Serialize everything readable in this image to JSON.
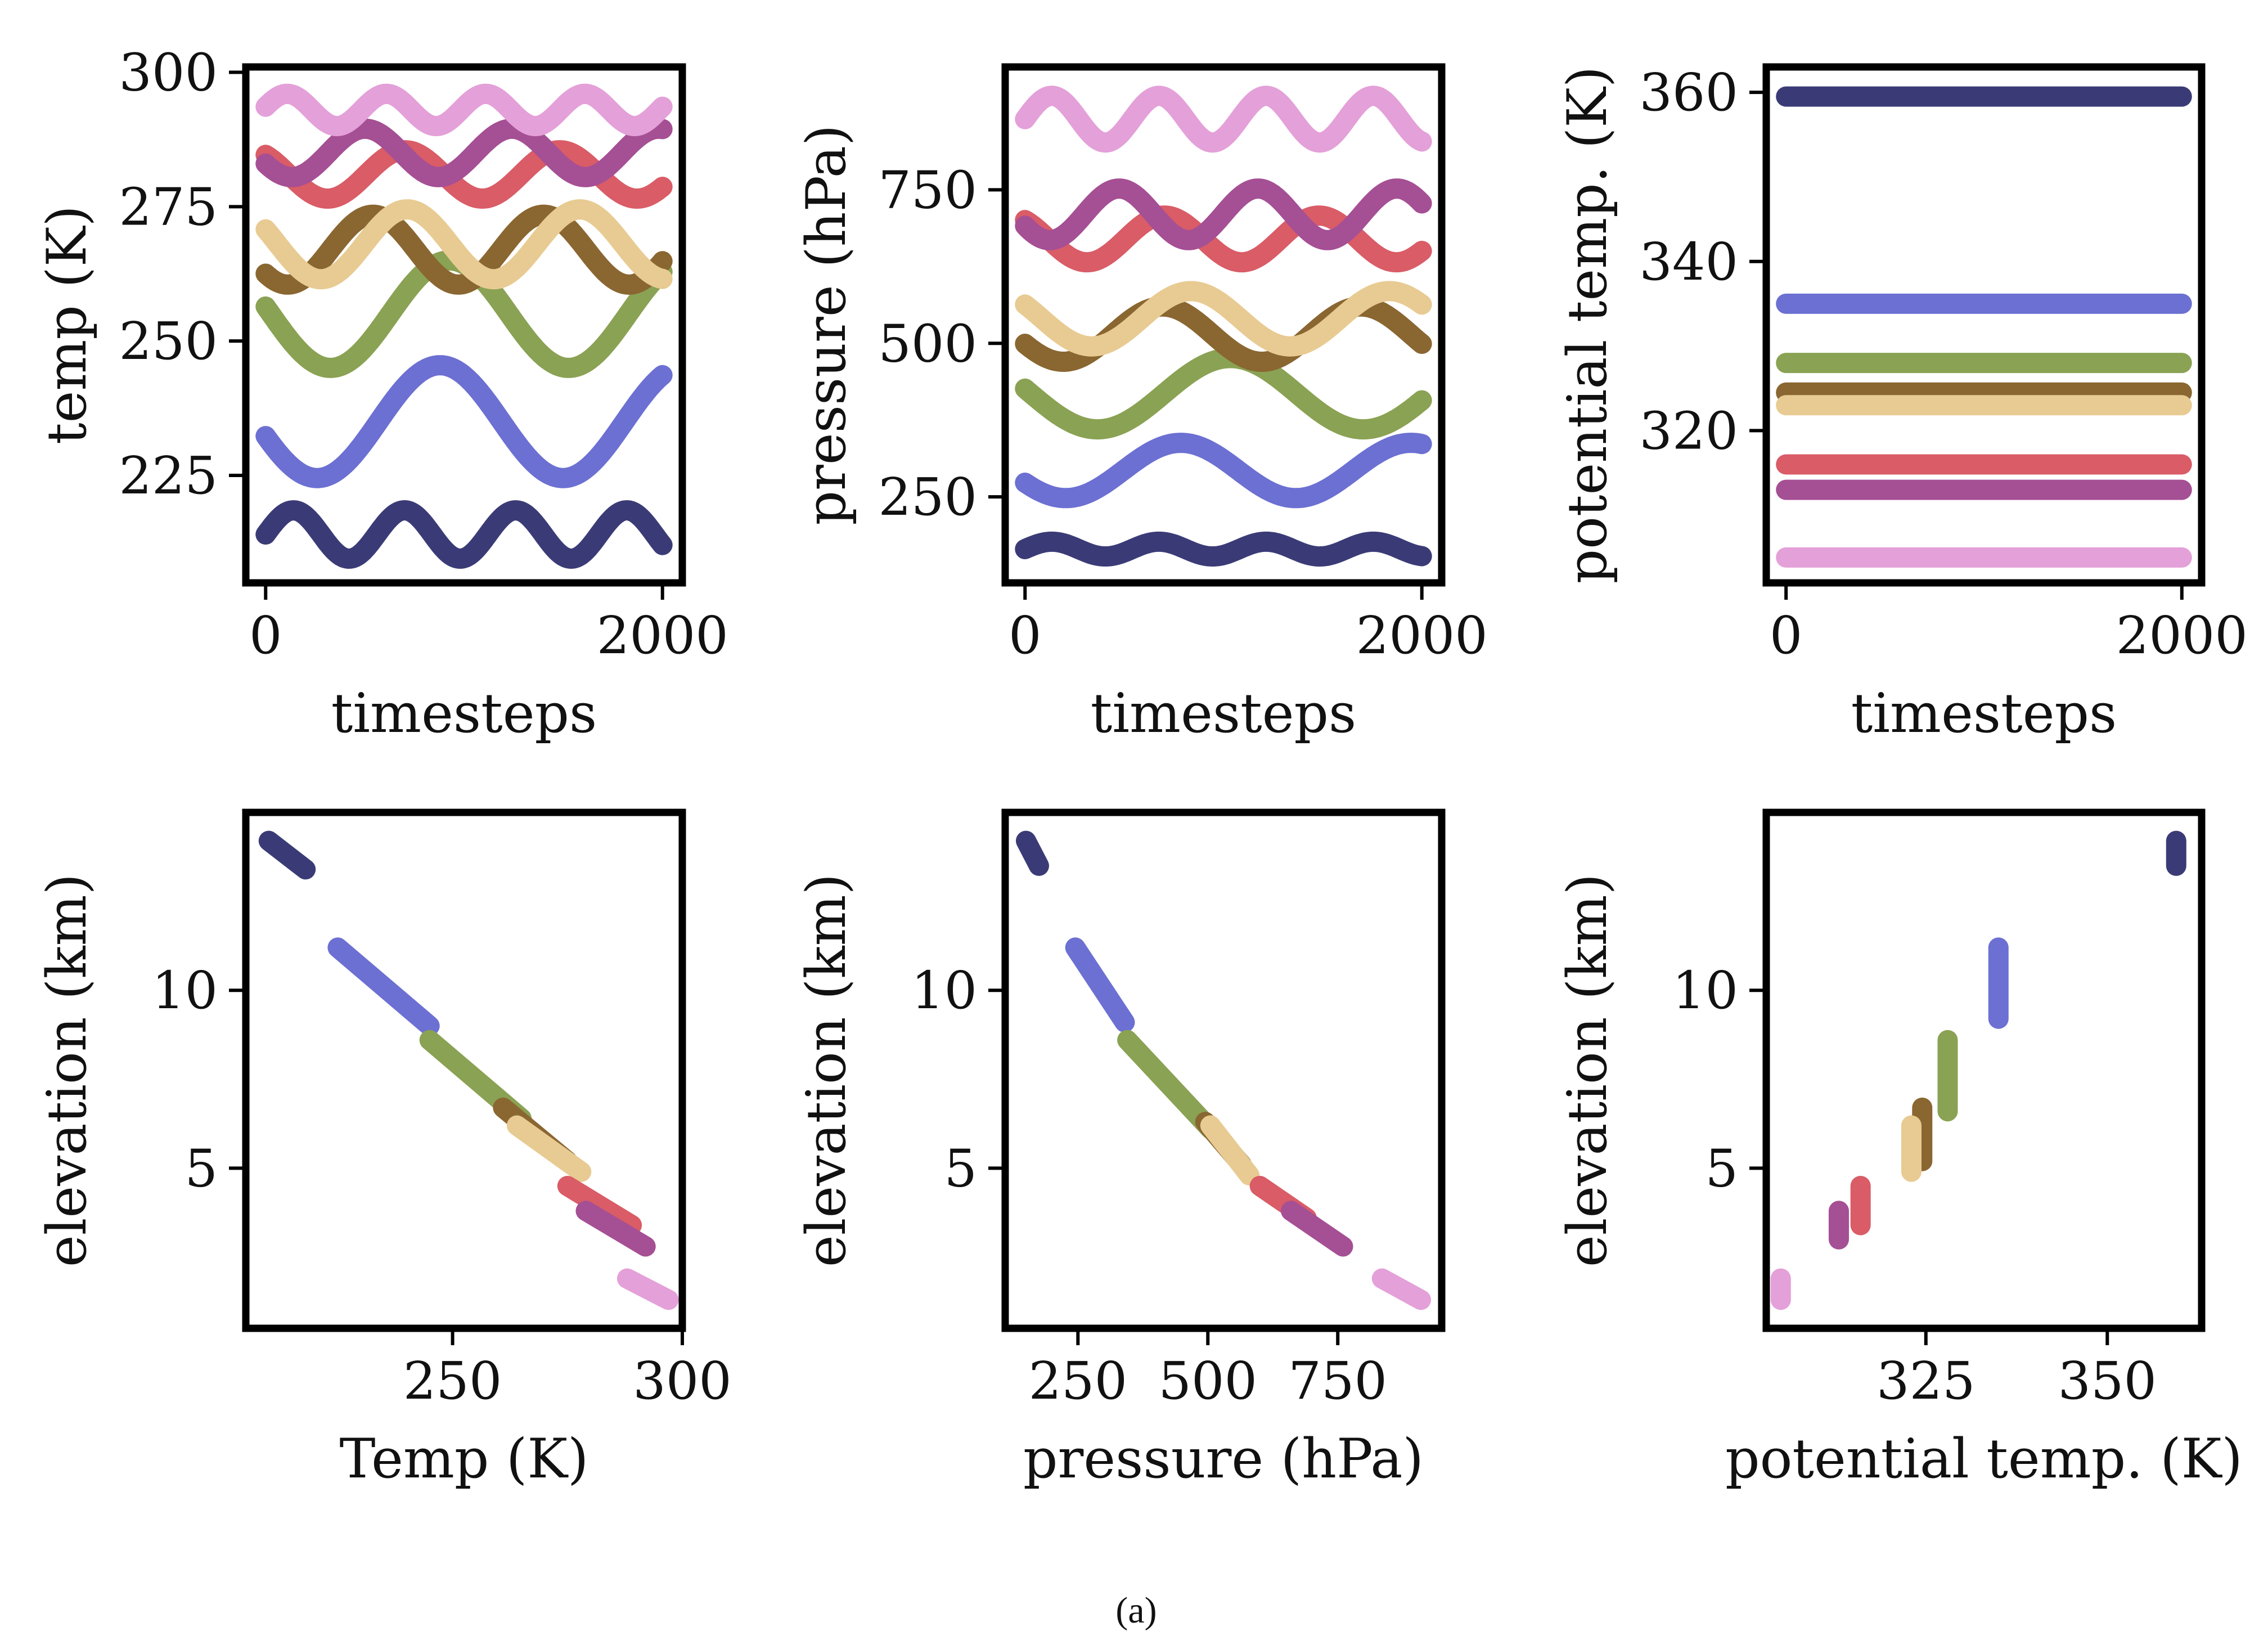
{
  "caption": "(a)",
  "series_colors": [
    "#3a3b76",
    "#6c70d2",
    "#8aa253",
    "#8a6631",
    "#e8cb92",
    "#d95c67",
    "#a54f94",
    "#e4a0d8"
  ],
  "chart_data": [
    {
      "type": "line",
      "xlabel": "timesteps",
      "ylabel": "temp (K)",
      "xlim": [
        -100,
        2100
      ],
      "ylim": [
        205,
        301
      ],
      "xticks": [
        0,
        2000
      ],
      "yticks": [
        225,
        250,
        275,
        300
      ],
      "grid": false,
      "x_range": [
        0,
        2000
      ],
      "series": [
        {
          "mean": 214,
          "amplitude": 4.5,
          "period": 560,
          "phase": 0.0
        },
        {
          "mean": 235,
          "amplitude": 10.5,
          "period": 1240,
          "phase": 3.4
        },
        {
          "mean": 255,
          "amplitude": 10.0,
          "period": 1200,
          "phase": 3.0
        },
        {
          "mean": 267,
          "amplitude": 6.5,
          "period": 860,
          "phase": 3.9
        },
        {
          "mean": 268,
          "amplitude": 6.5,
          "period": 870,
          "phase": 2.7
        },
        {
          "mean": 281,
          "amplitude": 4.5,
          "period": 780,
          "phase": 2.2
        },
        {
          "mean": 285,
          "amplitude": 4.5,
          "period": 740,
          "phase": 3.6
        },
        {
          "mean": 293,
          "amplitude": 3.0,
          "period": 500,
          "phase": 0.2
        }
      ]
    },
    {
      "type": "line",
      "xlabel": "timesteps",
      "ylabel": "pressure (hPa)",
      "xlim": [
        -100,
        2100
      ],
      "ylim": [
        110,
        950
      ],
      "xticks": [
        0,
        2000
      ],
      "yticks": [
        250,
        500,
        750
      ],
      "grid": false,
      "x_range": [
        0,
        2000
      ],
      "series": [
        {
          "mean": 165,
          "amplitude": 12,
          "period": 540,
          "phase": 0.0
        },
        {
          "mean": 293,
          "amplitude": 45,
          "period": 1160,
          "phase": 3.6
        },
        {
          "mean": 418,
          "amplitude": 58,
          "period": 1340,
          "phase": 3.0
        },
        {
          "mean": 515,
          "amplitude": 45,
          "period": 1000,
          "phase": 3.5
        },
        {
          "mean": 540,
          "amplitude": 45,
          "period": 1000,
          "phase": 2.6
        },
        {
          "mean": 670,
          "amplitude": 38,
          "period": 780,
          "phase": 2.2
        },
        {
          "mean": 710,
          "amplitude": 42,
          "period": 700,
          "phase": 3.6
        },
        {
          "mean": 865,
          "amplitude": 38,
          "period": 540,
          "phase": 0.0
        }
      ]
    },
    {
      "type": "line",
      "xlabel": "timesteps",
      "ylabel": "potential temp. (K)",
      "xlim": [
        -100,
        2100
      ],
      "ylim": [
        302,
        363
      ],
      "xticks": [
        0,
        2000
      ],
      "yticks": [
        320,
        340,
        360
      ],
      "grid": false,
      "x_range": [
        0,
        2000
      ],
      "series": [
        {
          "value": 359.5
        },
        {
          "value": 335
        },
        {
          "value": 328
        },
        {
          "value": 324.5
        },
        {
          "value": 323
        },
        {
          "value": 316
        },
        {
          "value": 313
        },
        {
          "value": 305
        }
      ]
    },
    {
      "type": "line",
      "xlabel": "Temp (K)",
      "ylabel": "elevation (km)",
      "xlim": [
        205,
        300
      ],
      "ylim": [
        0.5,
        15
      ],
      "xticks": [
        250,
        300
      ],
      "yticks": [
        5,
        10
      ],
      "grid": false,
      "series": [
        {
          "x": [
            210,
            218
          ],
          "y": [
            14.2,
            13.4
          ]
        },
        {
          "x": [
            225,
            245
          ],
          "y": [
            11.2,
            9.0
          ]
        },
        {
          "x": [
            245,
            265
          ],
          "y": [
            8.6,
            6.4
          ]
        },
        {
          "x": [
            261,
            275
          ],
          "y": [
            6.7,
            5.2
          ]
        },
        {
          "x": [
            264,
            278
          ],
          "y": [
            6.2,
            4.9
          ]
        },
        {
          "x": [
            275,
            289
          ],
          "y": [
            4.5,
            3.4
          ]
        },
        {
          "x": [
            279,
            292
          ],
          "y": [
            3.8,
            2.8
          ]
        },
        {
          "x": [
            288,
            297
          ],
          "y": [
            1.9,
            1.3
          ]
        }
      ]
    },
    {
      "type": "line",
      "xlabel": "pressure (hPa)",
      "ylabel": "elevation (km)",
      "xlim": [
        110,
        950
      ],
      "ylim": [
        0.5,
        15
      ],
      "xticks": [
        250,
        500,
        750
      ],
      "yticks": [
        5,
        10
      ],
      "grid": false,
      "series": [
        {
          "x": [
            150,
            175
          ],
          "y": [
            14.2,
            13.5
          ]
        },
        {
          "x": [
            245,
            340
          ],
          "y": [
            11.2,
            9.1
          ]
        },
        {
          "x": [
            345,
            505
          ],
          "y": [
            8.6,
            6.1
          ]
        },
        {
          "x": [
            495,
            565
          ],
          "y": [
            6.3,
            5.1
          ]
        },
        {
          "x": [
            505,
            580
          ],
          "y": [
            6.2,
            4.8
          ]
        },
        {
          "x": [
            600,
            690
          ],
          "y": [
            4.5,
            3.6
          ]
        },
        {
          "x": [
            660,
            760
          ],
          "y": [
            3.8,
            2.8
          ]
        },
        {
          "x": [
            835,
            910
          ],
          "y": [
            1.9,
            1.3
          ]
        }
      ]
    },
    {
      "type": "line",
      "xlabel": "potential temp. (K)",
      "ylabel": "elevation (km)",
      "xlim": [
        303,
        363
      ],
      "ylim": [
        0.5,
        15
      ],
      "xticks": [
        325,
        350
      ],
      "yticks": [
        5,
        10
      ],
      "grid": false,
      "series": [
        {
          "x": [
            359.5,
            359.5
          ],
          "y": [
            14.2,
            13.5
          ]
        },
        {
          "x": [
            335,
            335
          ],
          "y": [
            11.2,
            9.2
          ]
        },
        {
          "x": [
            328,
            328
          ],
          "y": [
            8.6,
            6.6
          ]
        },
        {
          "x": [
            324.5,
            324.5
          ],
          "y": [
            6.7,
            5.2
          ]
        },
        {
          "x": [
            323,
            323
          ],
          "y": [
            6.2,
            4.9
          ]
        },
        {
          "x": [
            316,
            316
          ],
          "y": [
            4.5,
            3.4
          ]
        },
        {
          "x": [
            313,
            313
          ],
          "y": [
            3.8,
            3.0
          ]
        },
        {
          "x": [
            305,
            305
          ],
          "y": [
            1.9,
            1.3
          ]
        }
      ]
    }
  ]
}
